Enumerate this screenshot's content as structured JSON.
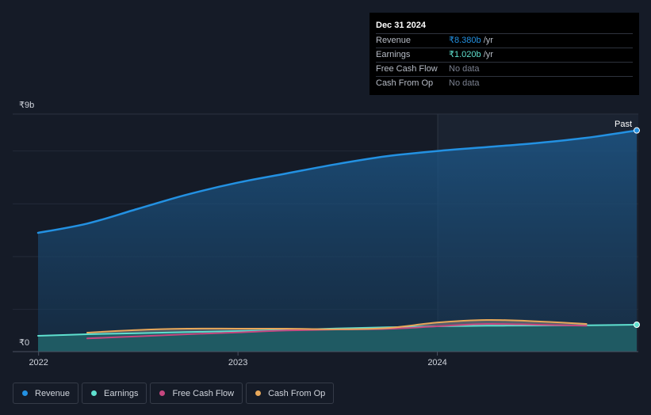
{
  "colors": {
    "revenue": "#2391e2",
    "earnings": "#5fe0cf",
    "free_cash_flow": "#c6477f",
    "cash_from_op": "#e8a85a"
  },
  "tooltip": {
    "date": "Dec 31 2024",
    "rows": [
      {
        "label": "Revenue",
        "value": "₹8.380b",
        "unit": " /yr",
        "color": "#2391e2"
      },
      {
        "label": "Earnings",
        "value": "₹1.020b",
        "unit": " /yr",
        "color": "#5fe0cf"
      },
      {
        "label": "Free Cash Flow",
        "value": "No data",
        "unit": "",
        "color": "#7b8190"
      },
      {
        "label": "Cash From Op",
        "value": "No data",
        "unit": "",
        "color": "#7b8190"
      }
    ]
  },
  "chart_data": {
    "type": "area",
    "y_axis": {
      "top_label": "₹9b",
      "bottom_label": "₹0",
      "ylim": [
        0,
        9
      ]
    },
    "x_ticks": [
      "2022",
      "2023",
      "2024"
    ],
    "past_label": "Past",
    "series": [
      {
        "name": "Revenue",
        "x": [
          "2021-12-31",
          "2022-03-31",
          "2022-06-30",
          "2022-09-30",
          "2022-12-31",
          "2023-03-31",
          "2023-06-30",
          "2023-09-30",
          "2023-12-31",
          "2024-03-31",
          "2024-06-30",
          "2024-09-30",
          "2024-12-31"
        ],
        "values": [
          4.5,
          4.85,
          5.4,
          5.95,
          6.4,
          6.75,
          7.1,
          7.4,
          7.6,
          7.75,
          7.9,
          8.1,
          8.38
        ]
      },
      {
        "name": "Earnings",
        "x": [
          "2021-12-31",
          "2022-03-31",
          "2022-06-30",
          "2022-09-30",
          "2022-12-31",
          "2023-03-31",
          "2023-06-30",
          "2023-09-30",
          "2023-12-31",
          "2024-03-31",
          "2024-06-30",
          "2024-09-30",
          "2024-12-31"
        ],
        "values": [
          0.6,
          0.66,
          0.7,
          0.74,
          0.78,
          0.82,
          0.88,
          0.92,
          0.96,
          0.98,
          0.99,
          1.0,
          1.02
        ]
      },
      {
        "name": "Free Cash Flow",
        "x": [
          "2022-03-31",
          "2022-06-30",
          "2022-09-30",
          "2022-12-31",
          "2023-03-31",
          "2023-06-30",
          "2023-09-30",
          "2023-12-31",
          "2024-03-31",
          "2024-06-30",
          "2024-09-30"
        ],
        "values": [
          0.5,
          0.58,
          0.66,
          0.73,
          0.8,
          0.84,
          0.86,
          0.96,
          1.05,
          1.02,
          0.98
        ]
      },
      {
        "name": "Cash From Op",
        "x": [
          "2022-03-31",
          "2022-06-30",
          "2022-09-30",
          "2022-12-31",
          "2023-03-31",
          "2023-06-30",
          "2023-09-30",
          "2023-12-31",
          "2024-03-31",
          "2024-06-30",
          "2024-09-30"
        ],
        "values": [
          0.72,
          0.82,
          0.87,
          0.87,
          0.87,
          0.85,
          0.89,
          1.1,
          1.2,
          1.15,
          1.05
        ]
      }
    ]
  },
  "legend": [
    {
      "label": "Revenue",
      "color": "#2391e2"
    },
    {
      "label": "Earnings",
      "color": "#5fe0cf"
    },
    {
      "label": "Free Cash Flow",
      "color": "#c6477f"
    },
    {
      "label": "Cash From Op",
      "color": "#e8a85a"
    }
  ]
}
